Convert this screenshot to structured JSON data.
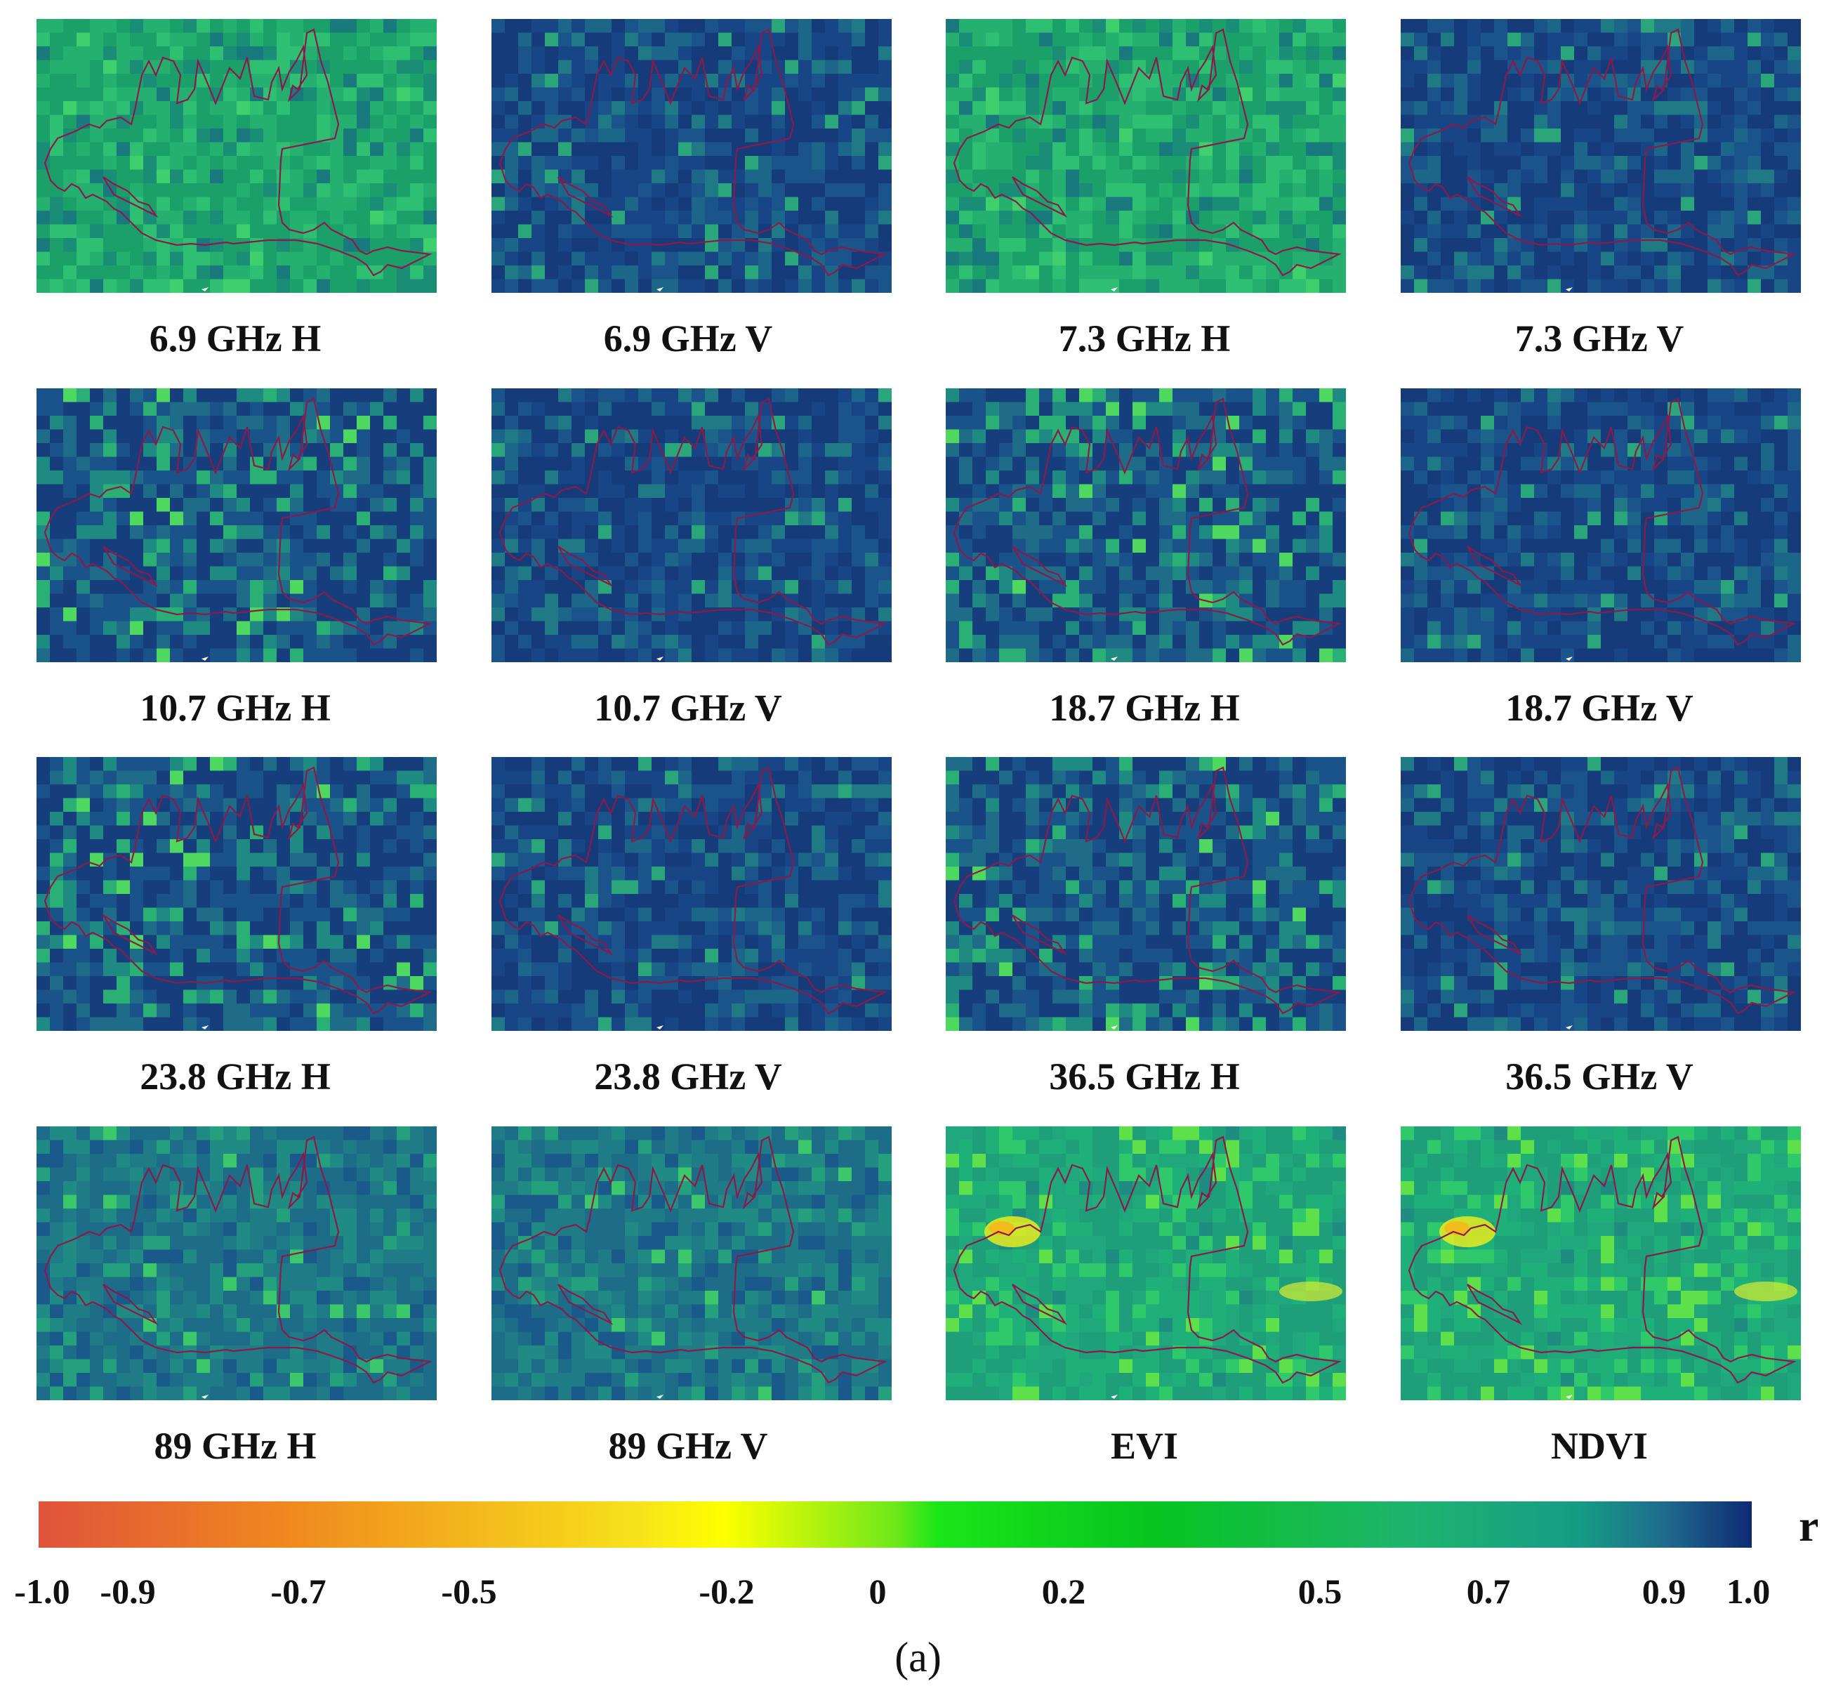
{
  "figure": {
    "panels": [
      {
        "label": "6.9 GHz H",
        "palette": "green"
      },
      {
        "label": "6.9 GHz V",
        "palette": "blue"
      },
      {
        "label": "7.3 GHz H",
        "palette": "green"
      },
      {
        "label": "7.3 GHz V",
        "palette": "blue"
      },
      {
        "label": "10.7 GHz H",
        "palette": "mixed"
      },
      {
        "label": "10.7 GHz V",
        "palette": "blue"
      },
      {
        "label": "18.7 GHz H",
        "palette": "mixed"
      },
      {
        "label": "18.7 GHz V",
        "palette": "blue"
      },
      {
        "label": "23.8 GHz H",
        "palette": "mixed"
      },
      {
        "label": "23.8 GHz V",
        "palette": "blue"
      },
      {
        "label": "36.5 GHz H",
        "palette": "mixed"
      },
      {
        "label": "36.5 GHz V",
        "palette": "blue"
      },
      {
        "label": "89 GHz H",
        "palette": "teal"
      },
      {
        "label": "89 GHz V",
        "palette": "teal"
      },
      {
        "label": "EVI",
        "palette": "vi"
      },
      {
        "label": "NDVI",
        "palette": "vi"
      }
    ],
    "colorbar": {
      "label": "r",
      "range": [
        -1.0,
        1.0
      ],
      "ticks": [
        "-1.0",
        "-0.9",
        "-0.7",
        "-0.5",
        "-0.2",
        "0",
        "0.2",
        "0.5",
        "0.7",
        "0.9",
        "1.0"
      ],
      "tick_values": [
        -1.0,
        -0.9,
        -0.7,
        -0.5,
        -0.2,
        0,
        0.2,
        0.5,
        0.7,
        0.9,
        1.0
      ],
      "stops": [
        {
          "value": -1.0,
          "color": "#e0533a"
        },
        {
          "value": -0.7,
          "color": "#f08a1e"
        },
        {
          "value": -0.3,
          "color": "#f7e21a"
        },
        {
          "value": -0.2,
          "color": "#ffff00"
        },
        {
          "value": 0.0,
          "color": "#6ee81a"
        },
        {
          "value": 0.05,
          "color": "#19e619"
        },
        {
          "value": 0.3,
          "color": "#07c41e"
        },
        {
          "value": 0.6,
          "color": "#1eb46e"
        },
        {
          "value": 0.8,
          "color": "#169b86"
        },
        {
          "value": 0.9,
          "color": "#1f6a8c"
        },
        {
          "value": 1.0,
          "color": "#102a74"
        }
      ]
    },
    "caption": "(a)"
  },
  "colors": {
    "boundary": "#8a1a4a",
    "palettes": {
      "green": [
        "#1ca06a",
        "#26b070",
        "#2fbf73",
        "#1a8d76",
        "#197a7d",
        "#3fcf6c"
      ],
      "blue": [
        "#153b7a",
        "#174585",
        "#1a548b",
        "#1c6689",
        "#1f7a86",
        "#2aa67a"
      ],
      "mixed": [
        "#163e7d",
        "#1a538a",
        "#1f6c88",
        "#1f8a82",
        "#2ab074",
        "#4fd860"
      ],
      "teal": [
        "#1d6c88",
        "#1f7c87",
        "#208b84",
        "#1a5a8a",
        "#25a07c",
        "#3cc86a"
      ],
      "vi": [
        "#1f9e7a",
        "#1fb07a",
        "#20a87c",
        "#2fc86a",
        "#5ee04a",
        "#1e8c80"
      ]
    }
  }
}
